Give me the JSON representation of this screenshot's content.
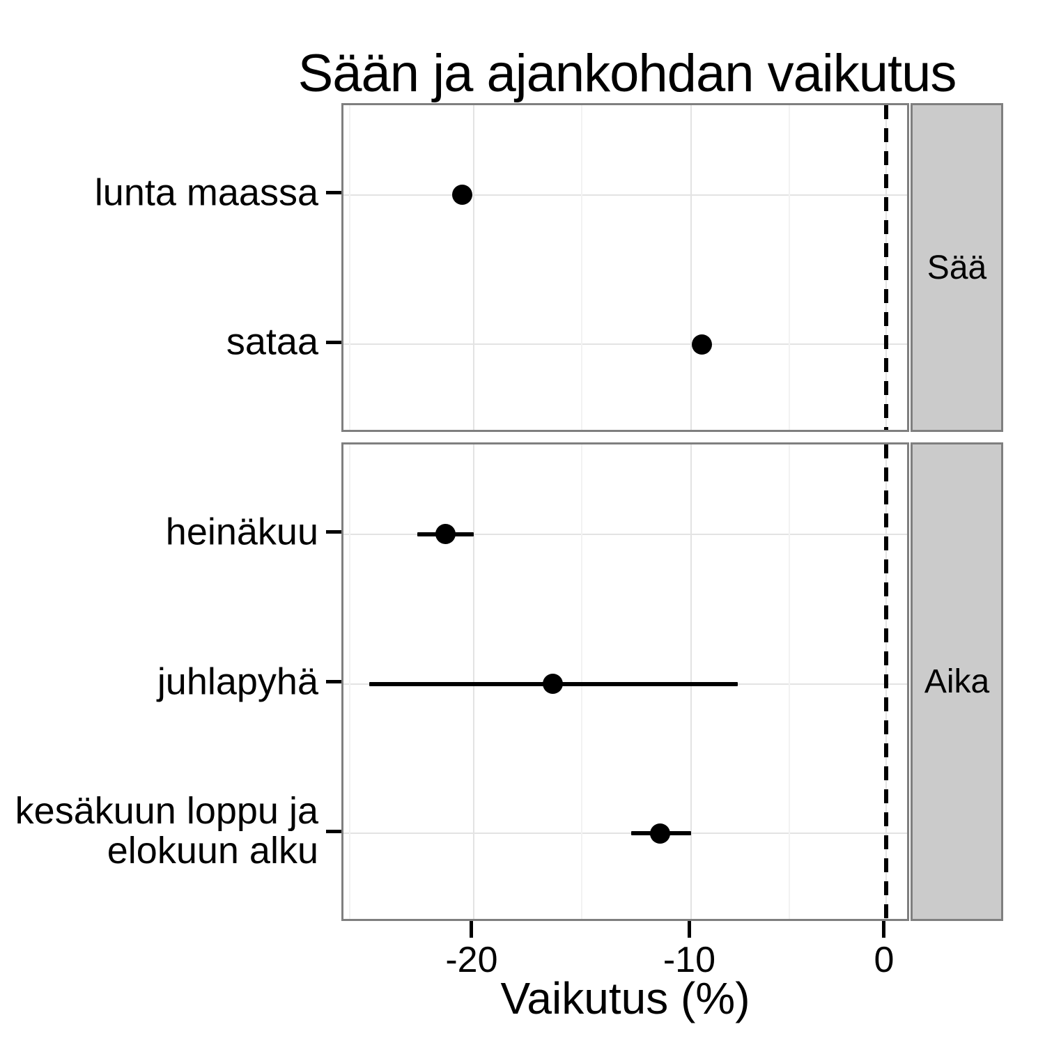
{
  "title": "Sään ja ajankohdan vaikutus",
  "chart_data": {
    "type": "scatter",
    "subtype": "coefficient-dot-interval-plot",
    "title": "Sään ja ajankohdan vaikutus",
    "xlabel": "Vaikutus (%)",
    "x_scale": "logarithmic in (100 + x), i.e. multiplicative percent scale",
    "x_axis_ticks": [
      {
        "value": -20,
        "label": "-20"
      },
      {
        "value": -10,
        "label": "-10"
      },
      {
        "value": 0,
        "label": "0"
      }
    ],
    "x_minor_gridlines": [
      -25.2,
      -15.2,
      -5.1
    ],
    "x_range_approx": [
      -25.4,
      1.4
    ],
    "zero_reference_line": 0,
    "grid": "on",
    "facets": [
      {
        "label": "Sää",
        "items": [
          {
            "label": "lunta maassa",
            "label_lines": [
              "lunta maassa"
            ],
            "value": -20.5,
            "ci_low": null,
            "ci_high": null
          },
          {
            "label": "sataa",
            "label_lines": [
              "sataa"
            ],
            "value": -9.5,
            "ci_low": null,
            "ci_high": null
          }
        ]
      },
      {
        "label": "Aika",
        "items": [
          {
            "label": "heinäkuu",
            "label_lines": [
              "heinäkuu"
            ],
            "value": -21.2,
            "ci_low": -22.4,
            "ci_high": -20.0
          },
          {
            "label": "juhlapyhä",
            "label_lines": [
              "juhlapyhä"
            ],
            "value": -16.5,
            "ci_low": -24.4,
            "ci_high": -7.7
          },
          {
            "label": "kesäkuun loppu ja elokuun alku",
            "label_lines": [
              "kesäkuun loppu ja",
              "elokuun alku"
            ],
            "value": -11.5,
            "ci_low": -12.9,
            "ci_high": -10.0
          }
        ]
      }
    ],
    "colors": {
      "point": "#000000",
      "error_bar": "#000000",
      "reference_line": "#000000",
      "strip_fill": "#cbcbcb",
      "panel_border": "#7f7f7f",
      "grid_major": "#e3e3e3",
      "grid_minor": "#f2f2f2",
      "background": "#ffffff"
    }
  }
}
